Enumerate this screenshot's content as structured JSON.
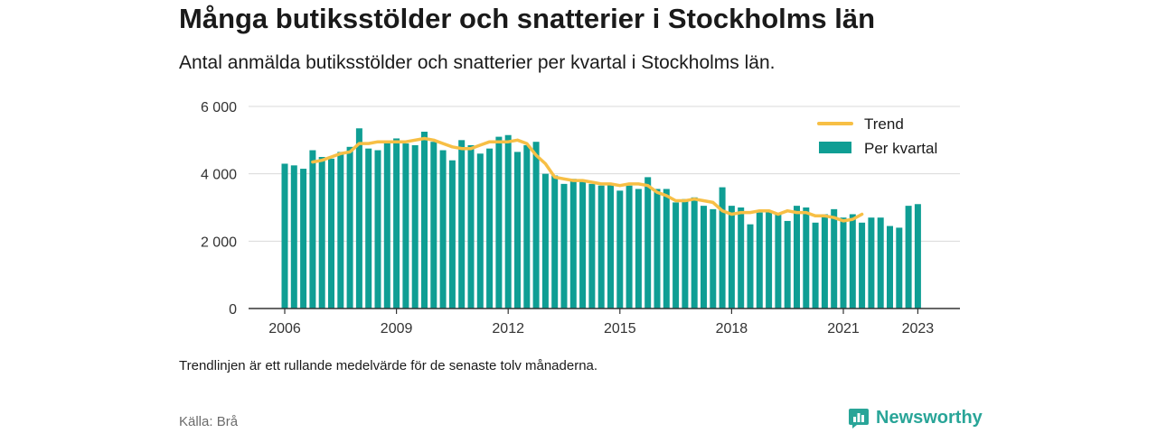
{
  "title": "Många butiksstölder och snatterier i Stockholms län",
  "subtitle": "Antal anmälda butiksstölder och snatterier per kvartal i Stockholms län.",
  "footnote": "Trendlinjen är ett rullande medelvärde för de senaste tolv månaderna.",
  "source": "Källa: Brå",
  "brand": {
    "name": "Newsworthy",
    "color": "#29a598",
    "icon": "bar-chart-speech-bubble-icon"
  },
  "chart_data": {
    "type": "bar",
    "start": {
      "year": 2006,
      "quarter": 1
    },
    "ylim": [
      0,
      6000
    ],
    "yticks": [
      0,
      2000,
      4000,
      6000
    ],
    "ytick_labels": [
      "0",
      "2 000",
      "4 000",
      "6 000"
    ],
    "xticks": [
      2006,
      2009,
      2012,
      2015,
      2018,
      2021,
      2023
    ],
    "xtick_labels": [
      "2006",
      "2009",
      "2012",
      "2015",
      "2018",
      "2021",
      "2023"
    ],
    "grid": true,
    "legend_position": "top-right",
    "colors": {
      "bars": "#0f9e94",
      "trend": "#f7bf45"
    },
    "series": [
      {
        "name": "Per kvartal",
        "kind": "bar",
        "values": [
          4300,
          4250,
          4150,
          4700,
          4500,
          4450,
          4650,
          4800,
          5350,
          4750,
          4700,
          4950,
          5050,
          4900,
          4850,
          5250,
          4950,
          4700,
          4400,
          5000,
          4850,
          4600,
          4750,
          5100,
          5150,
          4650,
          4850,
          4950,
          4000,
          3950,
          3700,
          3850,
          3800,
          3700,
          3650,
          3700,
          3500,
          3650,
          3550,
          3900,
          3550,
          3550,
          3150,
          3250,
          3300,
          3050,
          2950,
          3600,
          3050,
          3000,
          2500,
          2850,
          2900,
          2800,
          2600,
          3050,
          3000,
          2550,
          2800,
          2950,
          2700,
          2800,
          2550,
          2700,
          2700,
          2450,
          2400,
          3050,
          3100
        ]
      },
      {
        "name": "Trend",
        "kind": "line",
        "start_index": 3,
        "values": [
          4350,
          4400,
          4500,
          4600,
          4650,
          4900,
          4900,
          4950,
          4950,
          4950,
          4950,
          5000,
          5050,
          5000,
          4900,
          4800,
          4750,
          4750,
          4850,
          4950,
          4950,
          4950,
          5000,
          4900,
          4550,
          4300,
          3900,
          3850,
          3800,
          3800,
          3750,
          3700,
          3700,
          3650,
          3700,
          3700,
          3650,
          3450,
          3350,
          3200,
          3200,
          3250,
          3200,
          3150,
          2900,
          2800,
          2850,
          2850,
          2900,
          2900,
          2800,
          2900,
          2850,
          2850,
          2750,
          2750,
          2700,
          2600,
          2650,
          2800
        ]
      }
    ]
  }
}
